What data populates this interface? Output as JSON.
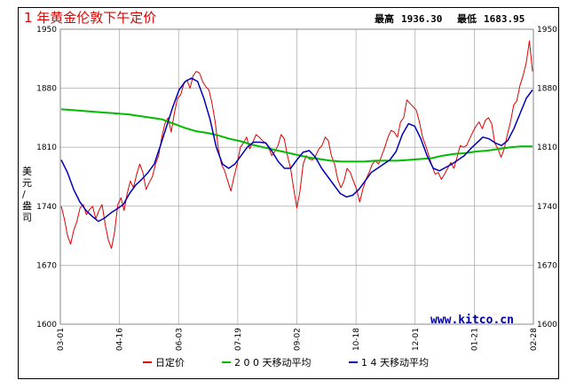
{
  "chart_data": {
    "type": "line",
    "title": "1 年黄金伦敦下午定价",
    "stats": {
      "high_label": "最高",
      "high": "1936.30",
      "low_label": "最低",
      "low": "1683.95"
    },
    "ylabel": "美元/盎司",
    "watermark": "www.kitco.cn",
    "ylim": [
      1600,
      1950
    ],
    "yticks": [
      1600,
      1670,
      1740,
      1810,
      1880,
      1950
    ],
    "xticks": [
      "03-01",
      "04-16",
      "06-03",
      "07-19",
      "09-02",
      "10-18",
      "12-01",
      "01-21",
      "02-28"
    ],
    "colors": {
      "fix": "#e00000",
      "ma200": "#00bb00",
      "ma14": "#0000bb",
      "grid": "#999999"
    },
    "series": [
      {
        "name": "日定价",
        "color": "#e00000",
        "values": [
          1740,
          1725,
          1705,
          1695,
          1712,
          1722,
          1738,
          1742,
          1730,
          1736,
          1740,
          1725,
          1735,
          1742,
          1718,
          1700,
          1690,
          1710,
          1742,
          1750,
          1735,
          1755,
          1770,
          1762,
          1778,
          1790,
          1780,
          1760,
          1768,
          1775,
          1790,
          1800,
          1822,
          1838,
          1845,
          1828,
          1850,
          1868,
          1872,
          1885,
          1890,
          1880,
          1895,
          1900,
          1898,
          1888,
          1882,
          1878,
          1862,
          1840,
          1808,
          1790,
          1782,
          1770,
          1758,
          1775,
          1790,
          1810,
          1815,
          1822,
          1808,
          1816,
          1825,
          1822,
          1818,
          1815,
          1810,
          1800,
          1805,
          1812,
          1825,
          1820,
          1800,
          1785,
          1760,
          1738,
          1758,
          1790,
          1800,
          1796,
          1795,
          1800,
          1808,
          1812,
          1822,
          1818,
          1800,
          1790,
          1772,
          1762,
          1770,
          1785,
          1780,
          1770,
          1760,
          1745,
          1760,
          1772,
          1780,
          1790,
          1794,
          1790,
          1800,
          1810,
          1822,
          1830,
          1828,
          1822,
          1840,
          1845,
          1866,
          1862,
          1858,
          1854,
          1840,
          1822,
          1812,
          1800,
          1788,
          1778,
          1780,
          1772,
          1778,
          1785,
          1792,
          1785,
          1798,
          1812,
          1810,
          1812,
          1820,
          1828,
          1835,
          1840,
          1832,
          1842,
          1845,
          1838,
          1815,
          1808,
          1798,
          1808,
          1825,
          1840,
          1860,
          1865,
          1883,
          1895,
          1910,
          1936,
          1900
        ]
      },
      {
        "name": "200 天移动平均",
        "color": "#00bb00",
        "values": [
          1855,
          1854,
          1853,
          1852,
          1851,
          1850,
          1849,
          1847,
          1845,
          1843,
          1838,
          1833,
          1829,
          1827,
          1824,
          1820,
          1817,
          1813,
          1810,
          1807,
          1804,
          1801,
          1798,
          1796,
          1794,
          1793,
          1793,
          1793,
          1794,
          1794,
          1794,
          1795,
          1796,
          1797,
          1800,
          1802,
          1803,
          1805,
          1806,
          1808,
          1810,
          1811,
          1811
        ]
      },
      {
        "name": "14 天移动平均",
        "color": "#0000bb",
        "values": [
          1795,
          1780,
          1760,
          1745,
          1735,
          1728,
          1722,
          1726,
          1732,
          1737,
          1742,
          1755,
          1765,
          1772,
          1780,
          1790,
          1812,
          1835,
          1858,
          1878,
          1888,
          1892,
          1888,
          1868,
          1843,
          1810,
          1790,
          1785,
          1790,
          1800,
          1810,
          1816,
          1816,
          1815,
          1805,
          1793,
          1785,
          1785,
          1795,
          1804,
          1806,
          1798,
          1785,
          1775,
          1765,
          1755,
          1751,
          1753,
          1760,
          1770,
          1780,
          1785,
          1790,
          1795,
          1805,
          1825,
          1838,
          1835,
          1820,
          1800,
          1785,
          1782,
          1786,
          1790,
          1795,
          1800,
          1808,
          1815,
          1822,
          1820,
          1815,
          1812,
          1818,
          1832,
          1850,
          1868,
          1878
        ]
      }
    ],
    "legend": [
      {
        "label": "日定价",
        "color": "#e00000"
      },
      {
        "label": "2 0 0 天移动平均",
        "color": "#00bb00"
      },
      {
        "label": "1 4 天移动平均",
        "color": "#0000bb"
      }
    ]
  }
}
